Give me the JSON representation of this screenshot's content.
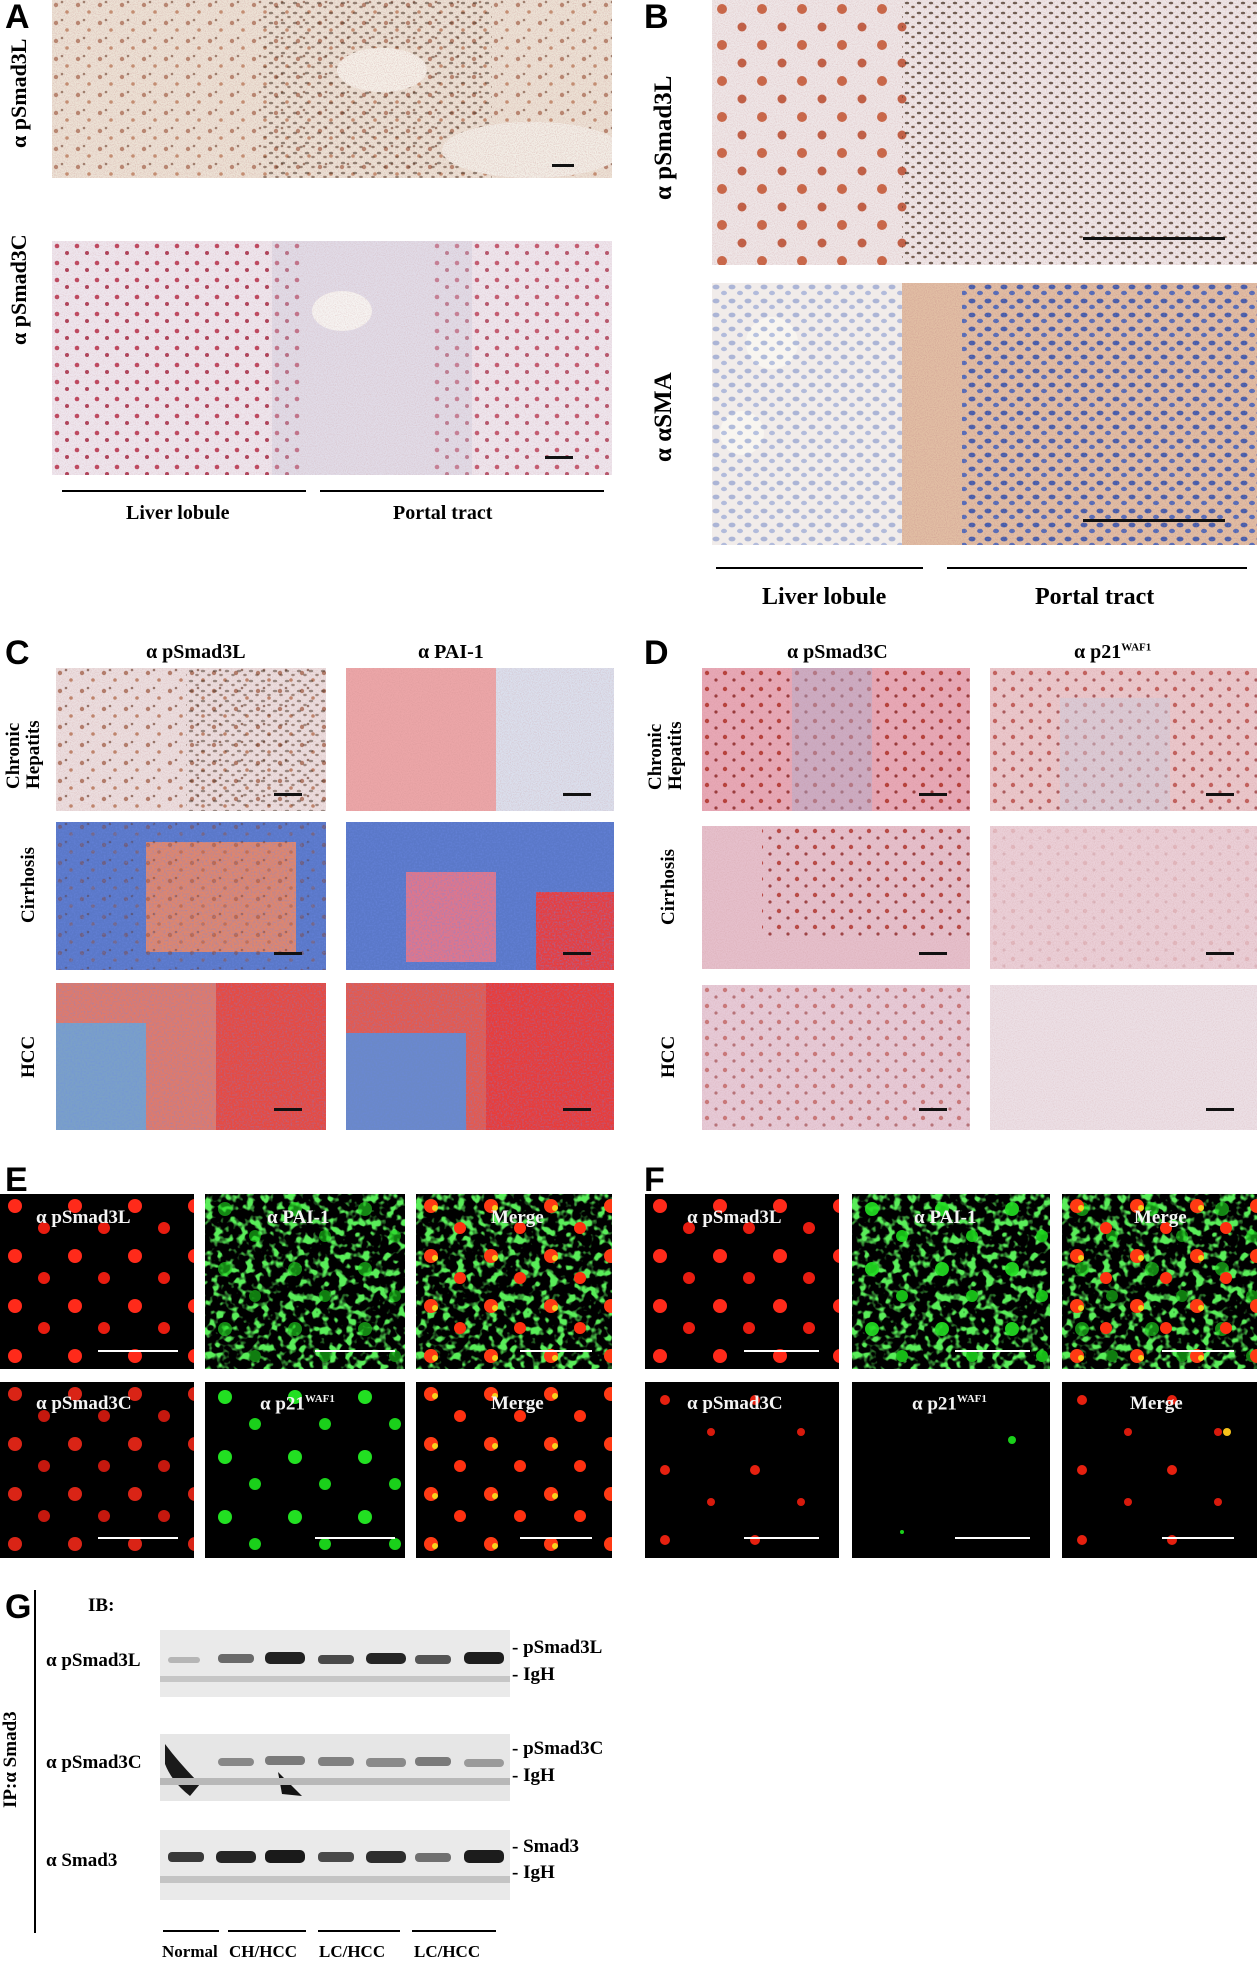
{
  "panels": {
    "A": {
      "letter": "A",
      "row_labels": [
        "α pSmad3L",
        "α pSmad3C"
      ],
      "region_labels": [
        "Liver lobule",
        "Portal tract"
      ]
    },
    "B": {
      "letter": "B",
      "row_labels": [
        "α pSmad3L",
        "α αSMA"
      ],
      "region_labels": [
        "Liver lobule",
        "Portal tract"
      ]
    },
    "C": {
      "letter": "C",
      "column_labels": [
        "α pSmad3L",
        "α PAI-1"
      ],
      "row_labels": [
        "Chronic Hepatits",
        "Cirrhosis",
        "HCC"
      ]
    },
    "D": {
      "letter": "D",
      "column_labels": [
        "α pSmad3C",
        "α p21"
      ],
      "column_label_superscript": "WAF1",
      "row_labels": [
        "Chronic Hepatits",
        "Cirrhosis",
        "HCC"
      ]
    },
    "E": {
      "letter": "E",
      "top_labels": [
        "α pSmad3L",
        "α PAI-1",
        "Merge"
      ],
      "bottom_labels": [
        "α pSmad3C",
        "α p21",
        "Merge"
      ],
      "superscript": "WAF1"
    },
    "F": {
      "letter": "F",
      "top_labels": [
        "α pSmad3L",
        "α PAI-1",
        "Merge"
      ],
      "bottom_labels": [
        "α pSmad3C",
        "α p21",
        "Merge"
      ],
      "superscript": "WAF1"
    },
    "G": {
      "letter": "G",
      "ib_label": "IB:",
      "ip_label": "IP:α Smad3",
      "blots": [
        {
          "antibody": "α pSmad3L",
          "bands": [
            "pSmad3L",
            "IgH"
          ]
        },
        {
          "antibody": "α pSmad3C",
          "bands": [
            "pSmad3C",
            "IgH"
          ]
        },
        {
          "antibody": "α Smad3",
          "bands": [
            "Smad3",
            "IgH"
          ]
        }
      ],
      "lanes": [
        "Normal",
        "CH/HCC",
        "LC/HCC",
        "LC/HCC"
      ]
    }
  }
}
